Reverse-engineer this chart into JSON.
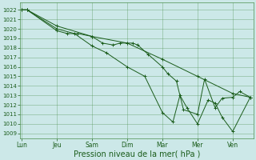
{
  "background_color": "#cce8e8",
  "grid_color": "#4d8f4d",
  "line_color": "#1a5c1a",
  "xlabel": "Pression niveau de la mer( hPa )",
  "xlabel_fontsize": 7,
  "ytick_labels": [
    1009,
    1010,
    1011,
    1012,
    1013,
    1014,
    1015,
    1016,
    1017,
    1018,
    1019,
    1020,
    1021,
    1022
  ],
  "ylim": [
    1008.5,
    1022.8
  ],
  "xtick_labels": [
    "Lun",
    "Jeu",
    "Sam",
    "Dim",
    "Mar",
    "Mer",
    "Ven"
  ],
  "xtick_positions": [
    0,
    1,
    2,
    3,
    4,
    5,
    6
  ],
  "xlim": [
    -0.05,
    6.6
  ],
  "series": [
    {
      "x": [
        0.0,
        0.15,
        1.0,
        2.0,
        3.0,
        4.0,
        5.0,
        6.0,
        6.5
      ],
      "y": [
        1022.0,
        1022.0,
        1020.3,
        1019.2,
        1018.5,
        1016.8,
        1015.0,
        1013.2,
        1012.8
      ]
    },
    {
      "x": [
        0.0,
        0.15,
        1.0,
        1.3,
        1.6,
        2.0,
        2.3,
        2.6,
        2.8,
        3.0,
        3.15,
        3.3,
        3.6,
        4.0,
        4.15,
        4.4,
        4.6,
        5.0,
        5.2,
        5.5,
        5.7,
        6.0,
        6.2,
        6.5
      ],
      "y": [
        1022.0,
        1022.0,
        1019.8,
        1019.5,
        1019.5,
        1019.2,
        1018.5,
        1018.3,
        1018.5,
        1018.5,
        1018.5,
        1018.3,
        1017.3,
        1016.0,
        1015.3,
        1014.5,
        1011.5,
        1011.0,
        1014.7,
        1011.7,
        1012.7,
        1012.8,
        1013.4,
        1012.8
      ]
    },
    {
      "x": [
        0.0,
        0.15,
        1.0,
        1.5,
        2.0,
        2.4,
        3.0,
        3.5,
        4.0,
        4.3,
        4.5,
        4.7,
        5.0,
        5.3,
        5.5,
        5.7,
        6.0,
        6.5
      ],
      "y": [
        1022.0,
        1022.0,
        1020.0,
        1019.5,
        1018.2,
        1017.5,
        1016.0,
        1015.0,
        1011.2,
        1010.2,
        1013.0,
        1011.7,
        1010.0,
        1012.5,
        1012.2,
        1010.7,
        1009.2,
        1012.8
      ]
    }
  ]
}
